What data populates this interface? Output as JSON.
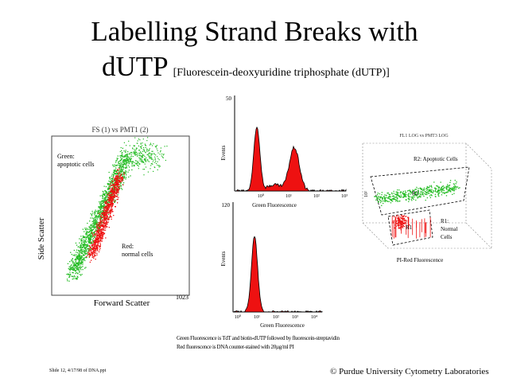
{
  "slide": {
    "title_line1": "Labelling Strand Breaks with",
    "title_line2": "dUTP",
    "title_sub": "[Fluorescein-deoxyuridine triphosphate (dUTP)]",
    "caption_line1": "Green Fluorescence is TdT and biotin-dUTP followed by fluorescein-streptavidin",
    "caption_line2": "Red fluorescence is DNA counter-stained with 20µg/ml PI",
    "slide_info": "Slide 12, 4/17/98 of DNA.ppt",
    "footer": "© Purdue University Cytometry Laboratories"
  },
  "scatter_plot": {
    "title": "FS (1) vs PMT1 (2)",
    "ylabel": "Side Scatter",
    "xlabel": "Forward Scatter",
    "x_tick_right": "1023",
    "label_green_1": "Green:",
    "label_green_2": "apoptotic cells",
    "label_red_1": "Red:",
    "label_red_2": "normal cells",
    "colors": {
      "green": "#22bb22",
      "red": "#ee1111"
    }
  },
  "histogram_top": {
    "ylabel": "Events",
    "xlabel": "Green Fluorescence",
    "y_tick_top": "50",
    "x_ticks": [
      "10⁰",
      "10¹",
      "10²",
      "10³"
    ]
  },
  "histogram_bottom": {
    "ylabel": "Events",
    "xlabel": "Green Fluorescence",
    "y_tick_top": "120",
    "x_ticks": [
      "10⁰",
      "10¹",
      "10²",
      "10³",
      "10⁴"
    ]
  },
  "plot_3d": {
    "title": "FL1 LOG vs PMT3 LOG",
    "region_r2": "R2: Apoptotic Cells",
    "r2_inner": "R2",
    "region_r1_1": "R1:",
    "region_r1_2": "Normal",
    "region_r1_3": "Cells",
    "r1_inner": "R1",
    "xlabel": "PI-Red Fluorescence",
    "y_tick": "10²"
  }
}
